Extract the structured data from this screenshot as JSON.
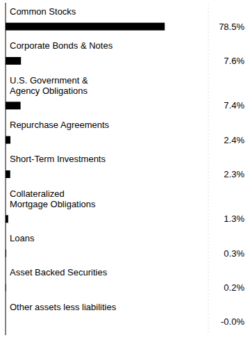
{
  "chart_data": {
    "type": "bar",
    "orientation": "horizontal",
    "categories": [
      "Common Stocks",
      "Corporate Bonds & Notes",
      "U.S. Government &\nAgency Obligations",
      "Repurchase Agreements",
      "Short-Term Investments",
      "Collateralized\nMortgage Obligations",
      "Loans",
      "Asset Backed Securities",
      "Other assets less liabilities"
    ],
    "values": [
      78.5,
      7.6,
      7.4,
      2.4,
      2.3,
      1.3,
      0.3,
      0.2,
      0.0
    ],
    "value_labels": [
      "78.5%",
      "7.6%",
      "7.4%",
      "2.4%",
      "2.3%",
      "1.3%",
      "0.3%",
      "0.2%",
      "-0.0%"
    ],
    "color": "#000000",
    "xlim": [
      0,
      100
    ],
    "data_labels": true,
    "tick_labels": false,
    "grid": false
  }
}
